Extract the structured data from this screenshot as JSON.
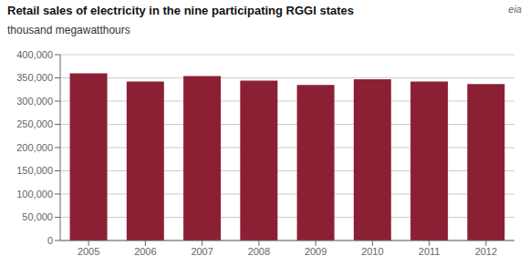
{
  "chart_data": {
    "type": "bar",
    "title": "Retail sales of electricity in the nine participating RGGI states",
    "subtitle": "thousand megawatthours",
    "annotations": [
      "eia"
    ],
    "categories": [
      "2005",
      "2006",
      "2007",
      "2008",
      "2009",
      "2010",
      "2011",
      "2012"
    ],
    "values": [
      360000,
      342000,
      354000,
      344000,
      335000,
      347000,
      342000,
      337000
    ],
    "color": "#8B2035",
    "ylim": [
      0,
      400000
    ],
    "yticks": [
      0,
      {
        "value": 50000,
        "label": "50,000"
      },
      {
        "value": 100000,
        "label": "100,000"
      },
      {
        "value": 150000,
        "label": "150,000"
      },
      {
        "value": 200000,
        "label": "200,000"
      },
      {
        "value": 250000,
        "label": "250,000"
      },
      {
        "value": 300000,
        "label": "300,000"
      },
      {
        "value": 350000,
        "label": "350,000"
      },
      {
        "value": 400000,
        "label": "400,000"
      }
    ],
    "grid": true
  }
}
